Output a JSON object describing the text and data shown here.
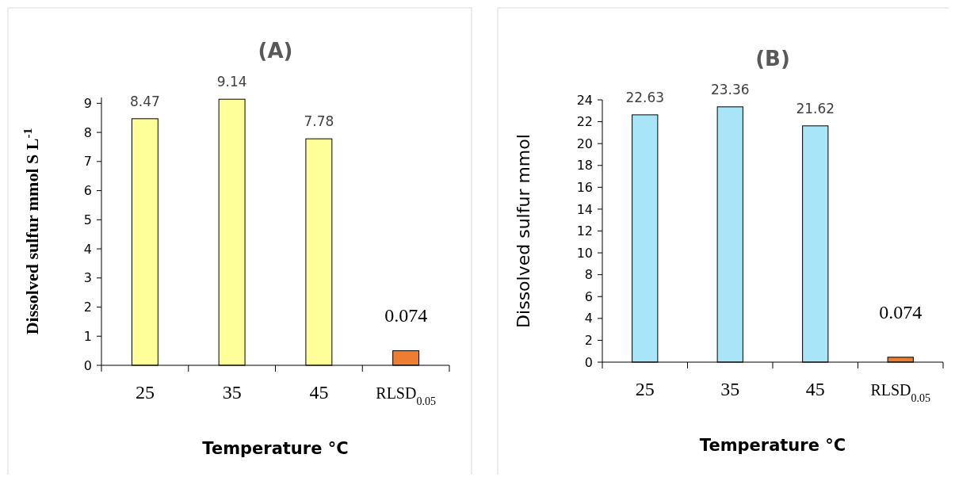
{
  "chart_data": [
    {
      "type": "bar",
      "title": "(A)",
      "xlabel": "Temperature °C",
      "ylabel": "Dissolved sulfur mmol S L$^{-1}$",
      "categories": [
        "25",
        "35",
        "45",
        "RLSD$_{0.05}$"
      ],
      "values": [
        8.47,
        9.14,
        7.78,
        0.5
      ],
      "colors": [
        "#ffff99",
        "#ffff99",
        "#ffff99",
        "#ed7d31"
      ],
      "value_labels": [
        "8.47",
        "9.14",
        "7.78",
        null
      ],
      "annotations": [
        "0.074"
      ],
      "ylim": [
        0,
        9.2
      ],
      "yticks": [
        0,
        1,
        2,
        3,
        4,
        5,
        6,
        7,
        8,
        9
      ]
    },
    {
      "type": "bar",
      "title": "(B)",
      "xlabel": "Temperature °C",
      "ylabel": "Dissolved sulfur mmol",
      "categories": [
        "25",
        "35",
        "45",
        "RLSD$_{0.05}$"
      ],
      "values": [
        22.63,
        23.36,
        21.62,
        0.45
      ],
      "colors": [
        "#a9e5f8",
        "#a9e5f8",
        "#a9e5f8",
        "#ed7d31"
      ],
      "value_labels": [
        "22.63",
        "23.36",
        "21.62",
        null
      ],
      "annotations": [
        "0.074"
      ],
      "ylim": [
        0,
        24
      ],
      "yticks": [
        0,
        2,
        4,
        6,
        8,
        10,
        12,
        14,
        16,
        18,
        20,
        22,
        24
      ]
    }
  ]
}
